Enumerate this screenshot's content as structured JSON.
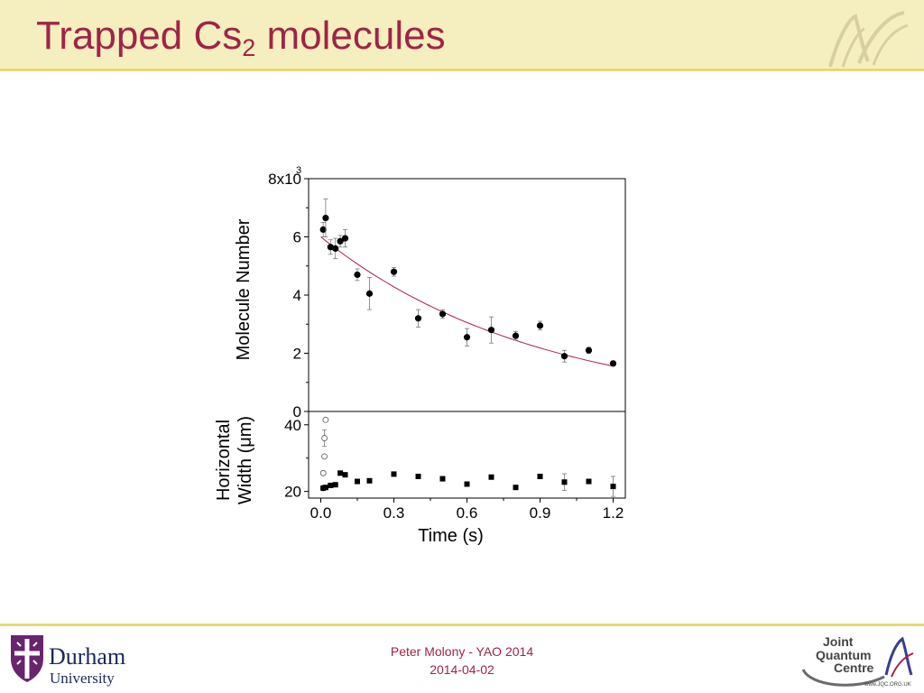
{
  "slide": {
    "title_main": "Trapped Cs",
    "title_sub": "2",
    "title_rest": " molecules",
    "footer_line1": "Peter Molony - YAO 2014",
    "footer_line2": "2014-04-02",
    "durham_line1": "Durham",
    "durham_line2": "University",
    "jqc_line1": "Joint",
    "jqc_line2": "Quantum",
    "jqc_line3": "Centre",
    "jqc_url": "www.JQC.ORG.UK"
  },
  "colors": {
    "title": "#a02447",
    "header_bg": "#f5efbf",
    "rule": "#e7d96f",
    "fit_line": "#a02447",
    "marker": "#000000"
  },
  "chart_data": [
    {
      "type": "scatter",
      "panel": "top",
      "ylabel": "Molecule Number",
      "ytick_labels": [
        "0",
        "2",
        "4",
        "6",
        "8x10"
      ],
      "ytick_values": [
        0,
        2000,
        4000,
        6000,
        8000
      ],
      "ytick_exponent": "3",
      "xlim": [
        -0.05,
        1.25
      ],
      "ylim": [
        0,
        8000
      ],
      "grid": false,
      "marker": "filled-circle",
      "points": [
        {
          "x": 0.01,
          "y": 6250,
          "err": 250
        },
        {
          "x": 0.02,
          "y": 6650,
          "err": 650
        },
        {
          "x": 0.04,
          "y": 5650,
          "err": 250
        },
        {
          "x": 0.06,
          "y": 5600,
          "err": 350
        },
        {
          "x": 0.08,
          "y": 5850,
          "err": 200
        },
        {
          "x": 0.1,
          "y": 5950,
          "err": 300
        },
        {
          "x": 0.15,
          "y": 4700,
          "err": 200
        },
        {
          "x": 0.2,
          "y": 4050,
          "err": 550
        },
        {
          "x": 0.3,
          "y": 4800,
          "err": 150
        },
        {
          "x": 0.4,
          "y": 3200,
          "err": 300
        },
        {
          "x": 0.5,
          "y": 3350,
          "err": 150
        },
        {
          "x": 0.6,
          "y": 2550,
          "err": 300
        },
        {
          "x": 0.7,
          "y": 2800,
          "err": 450
        },
        {
          "x": 0.8,
          "y": 2600,
          "err": 150
        },
        {
          "x": 0.9,
          "y": 2950,
          "err": 150
        },
        {
          "x": 1.0,
          "y": 1900,
          "err": 200
        },
        {
          "x": 1.1,
          "y": 2100,
          "err": 100
        },
        {
          "x": 1.2,
          "y": 1650,
          "err": 80
        }
      ],
      "fit": {
        "model": "exponential",
        "A": 6000,
        "tau": 0.89,
        "x_range": [
          0.0,
          1.2
        ]
      }
    },
    {
      "type": "scatter",
      "panel": "bottom",
      "ylabel": "Horizontal Width (μm)",
      "ylabel_line1": "Horizontal",
      "ylabel_line2": "Width (",
      "ylabel_mu": "μ",
      "ylabel_line2_end": "m)",
      "xlabel": "Time (s)",
      "xtick_labels": [
        "0.0",
        "0.3",
        "0.6",
        "0.9",
        "1.2"
      ],
      "xtick_values": [
        0.0,
        0.3,
        0.6,
        0.9,
        1.2
      ],
      "ytick_labels": [
        "20",
        "40"
      ],
      "ytick_values": [
        20,
        40
      ],
      "xlim": [
        -0.05,
        1.25
      ],
      "ylim": [
        18,
        44
      ],
      "grid": false,
      "series": [
        {
          "marker": "open-circle",
          "points": [
            {
              "x": 0.01,
              "y": 21,
              "err": 0
            },
            {
              "x": 0.01,
              "y": 25.5,
              "err": 0
            },
            {
              "x": 0.015,
              "y": 30.5,
              "err": 0
            },
            {
              "x": 0.015,
              "y": 36,
              "err": 2.5
            },
            {
              "x": 0.02,
              "y": 41.5,
              "err": 0
            }
          ]
        },
        {
          "marker": "filled-square",
          "points": [
            {
              "x": 0.01,
              "y": 21,
              "err": 0
            },
            {
              "x": 0.02,
              "y": 21.2,
              "err": 0
            },
            {
              "x": 0.04,
              "y": 21.8,
              "err": 0
            },
            {
              "x": 0.06,
              "y": 22,
              "err": 0
            },
            {
              "x": 0.08,
              "y": 25.5,
              "err": 0
            },
            {
              "x": 0.1,
              "y": 25,
              "err": 0
            },
            {
              "x": 0.15,
              "y": 23,
              "err": 0
            },
            {
              "x": 0.2,
              "y": 23.2,
              "err": 0
            },
            {
              "x": 0.3,
              "y": 25.2,
              "err": 0
            },
            {
              "x": 0.4,
              "y": 24.5,
              "err": 0
            },
            {
              "x": 0.5,
              "y": 23.8,
              "err": 0
            },
            {
              "x": 0.6,
              "y": 22.2,
              "err": 0
            },
            {
              "x": 0.7,
              "y": 24.3,
              "err": 0
            },
            {
              "x": 0.8,
              "y": 21.2,
              "err": 0
            },
            {
              "x": 0.9,
              "y": 24.5,
              "err": 0
            },
            {
              "x": 1.0,
              "y": 22.8,
              "err": 2.5
            },
            {
              "x": 1.1,
              "y": 23,
              "err": 0
            },
            {
              "x": 1.2,
              "y": 21.5,
              "err": 3
            }
          ]
        }
      ]
    }
  ]
}
